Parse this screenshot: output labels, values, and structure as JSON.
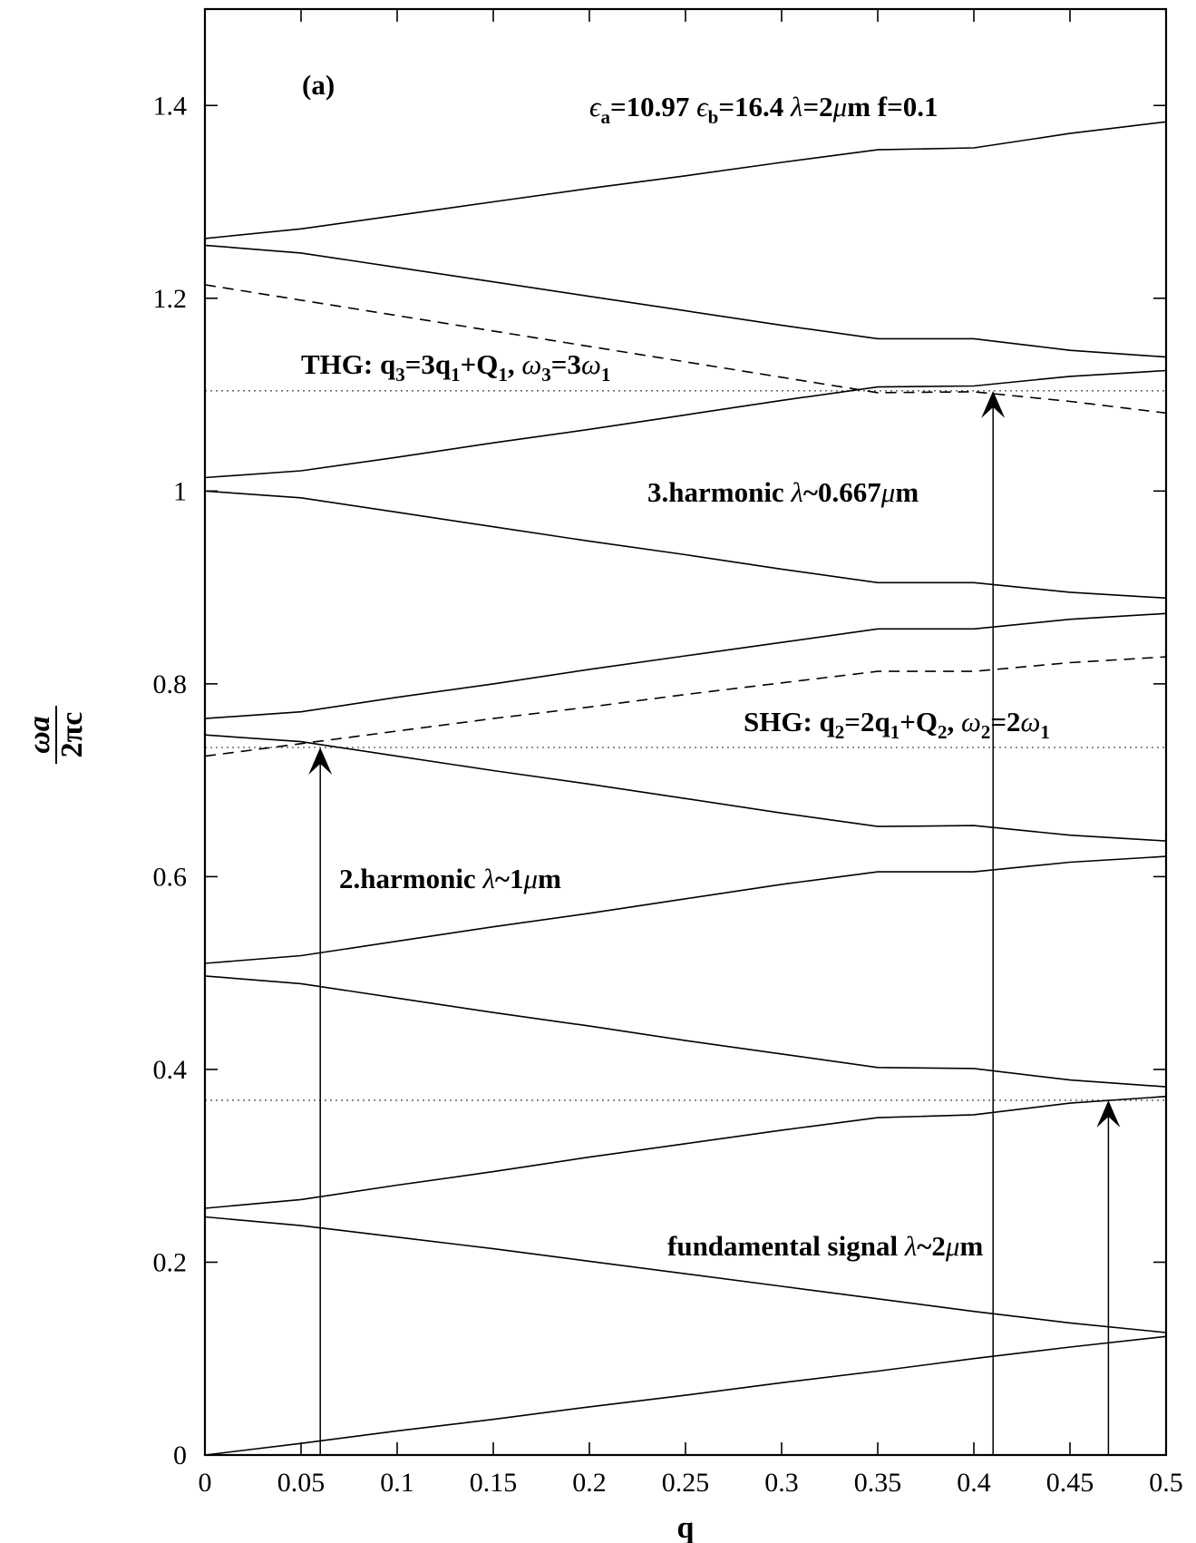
{
  "chart_data": {
    "type": "line",
    "panel_label": "(a)",
    "xlabel": "q",
    "ylabel": {
      "numerator": "ωa",
      "denominator": "2πc"
    },
    "xlim": [
      0,
      0.5
    ],
    "ylim": [
      0,
      1.5
    ],
    "xticks": [
      0,
      0.05,
      0.1,
      0.15,
      0.2,
      0.25,
      0.3,
      0.35,
      0.4,
      0.45,
      0.5
    ],
    "xtick_labels": [
      "0",
      "0.05",
      "0.1",
      "0.15",
      "0.2",
      "0.25",
      "0.3",
      "0.35",
      "0.4",
      "0.45",
      "0.5"
    ],
    "yticks": [
      0,
      0.2,
      0.4,
      0.6,
      0.8,
      1.0,
      1.2,
      1.4
    ],
    "ytick_labels": [
      "0",
      "0.2",
      "0.4",
      "0.6",
      "0.8",
      "1",
      "1.2",
      "1.4"
    ],
    "grid": false,
    "series": [
      {
        "style": "solid",
        "points": [
          [
            0,
            0.0
          ],
          [
            0.05,
            0.012
          ],
          [
            0.1,
            0.025
          ],
          [
            0.15,
            0.037
          ],
          [
            0.2,
            0.05
          ],
          [
            0.25,
            0.062
          ],
          [
            0.3,
            0.075
          ],
          [
            0.35,
            0.087
          ],
          [
            0.4,
            0.1
          ],
          [
            0.45,
            0.112
          ],
          [
            0.5,
            0.123
          ]
        ]
      },
      {
        "style": "solid",
        "points": [
          [
            0,
            0.247
          ],
          [
            0.05,
            0.238
          ],
          [
            0.1,
            0.226
          ],
          [
            0.15,
            0.214
          ],
          [
            0.2,
            0.201
          ],
          [
            0.25,
            0.188
          ],
          [
            0.3,
            0.175
          ],
          [
            0.35,
            0.162
          ],
          [
            0.4,
            0.149
          ],
          [
            0.45,
            0.137
          ],
          [
            0.5,
            0.127
          ]
        ]
      },
      {
        "style": "solid",
        "points": [
          [
            0,
            0.256
          ],
          [
            0.05,
            0.265
          ],
          [
            0.1,
            0.28
          ],
          [
            0.15,
            0.294
          ],
          [
            0.2,
            0.309
          ],
          [
            0.25,
            0.323
          ],
          [
            0.3,
            0.337
          ],
          [
            0.35,
            0.35
          ],
          [
            0.4,
            0.353
          ],
          [
            0.45,
            0.365
          ],
          [
            0.5,
            0.372
          ]
        ]
      },
      {
        "style": "solid",
        "points": [
          [
            0,
            0.497
          ],
          [
            0.05,
            0.489
          ],
          [
            0.1,
            0.474
          ],
          [
            0.15,
            0.459
          ],
          [
            0.2,
            0.445
          ],
          [
            0.25,
            0.43
          ],
          [
            0.3,
            0.416
          ],
          [
            0.35,
            0.402
          ],
          [
            0.4,
            0.401
          ],
          [
            0.45,
            0.389
          ],
          [
            0.5,
            0.382
          ]
        ]
      },
      {
        "style": "solid",
        "points": [
          [
            0,
            0.51
          ],
          [
            0.05,
            0.518
          ],
          [
            0.1,
            0.533
          ],
          [
            0.15,
            0.548
          ],
          [
            0.2,
            0.562
          ],
          [
            0.25,
            0.577
          ],
          [
            0.3,
            0.592
          ],
          [
            0.35,
            0.605
          ],
          [
            0.4,
            0.605
          ],
          [
            0.45,
            0.615
          ],
          [
            0.5,
            0.621
          ]
        ]
      },
      {
        "style": "solid",
        "points": [
          [
            0,
            0.747
          ],
          [
            0.05,
            0.74
          ],
          [
            0.1,
            0.725
          ],
          [
            0.15,
            0.71
          ],
          [
            0.2,
            0.696
          ],
          [
            0.25,
            0.681
          ],
          [
            0.3,
            0.666
          ],
          [
            0.35,
            0.652
          ],
          [
            0.4,
            0.653
          ],
          [
            0.45,
            0.643
          ],
          [
            0.5,
            0.637
          ]
        ]
      },
      {
        "style": "solid",
        "points": [
          [
            0,
            0.764
          ],
          [
            0.05,
            0.771
          ],
          [
            0.1,
            0.786
          ],
          [
            0.15,
            0.8
          ],
          [
            0.2,
            0.815
          ],
          [
            0.25,
            0.829
          ],
          [
            0.3,
            0.843
          ],
          [
            0.35,
            0.857
          ],
          [
            0.4,
            0.857
          ],
          [
            0.45,
            0.867
          ],
          [
            0.5,
            0.873
          ]
        ]
      },
      {
        "style": "solid",
        "points": [
          [
            0,
            1.0
          ],
          [
            0.05,
            0.993
          ],
          [
            0.1,
            0.978
          ],
          [
            0.15,
            0.963
          ],
          [
            0.2,
            0.948
          ],
          [
            0.25,
            0.934
          ],
          [
            0.3,
            0.919
          ],
          [
            0.35,
            0.905
          ],
          [
            0.4,
            0.905
          ],
          [
            0.45,
            0.895
          ],
          [
            0.5,
            0.889
          ]
        ]
      },
      {
        "style": "solid",
        "points": [
          [
            0,
            1.014
          ],
          [
            0.05,
            1.021
          ],
          [
            0.1,
            1.035
          ],
          [
            0.15,
            1.05
          ],
          [
            0.2,
            1.064
          ],
          [
            0.25,
            1.079
          ],
          [
            0.3,
            1.094
          ],
          [
            0.35,
            1.108
          ],
          [
            0.4,
            1.109
          ],
          [
            0.45,
            1.119
          ],
          [
            0.5,
            1.125
          ]
        ]
      },
      {
        "style": "solid",
        "points": [
          [
            0,
            1.255
          ],
          [
            0.05,
            1.247
          ],
          [
            0.1,
            1.232
          ],
          [
            0.15,
            1.217
          ],
          [
            0.2,
            1.202
          ],
          [
            0.25,
            1.187
          ],
          [
            0.3,
            1.172
          ],
          [
            0.35,
            1.158
          ],
          [
            0.4,
            1.158
          ],
          [
            0.45,
            1.146
          ],
          [
            0.5,
            1.139
          ]
        ]
      },
      {
        "style": "solid",
        "points": [
          [
            0,
            1.262
          ],
          [
            0.05,
            1.272
          ],
          [
            0.1,
            1.286
          ],
          [
            0.15,
            1.3
          ],
          [
            0.2,
            1.314
          ],
          [
            0.25,
            1.327
          ],
          [
            0.3,
            1.341
          ],
          [
            0.35,
            1.354
          ],
          [
            0.4,
            1.356
          ],
          [
            0.45,
            1.371
          ],
          [
            0.5,
            1.383
          ]
        ]
      },
      {
        "style": "dashed",
        "points": [
          [
            0,
            0.725
          ],
          [
            0.05,
            0.738
          ],
          [
            0.1,
            0.751
          ],
          [
            0.15,
            0.764
          ],
          [
            0.2,
            0.776
          ],
          [
            0.25,
            0.789
          ],
          [
            0.3,
            0.801
          ],
          [
            0.35,
            0.813
          ],
          [
            0.4,
            0.813
          ],
          [
            0.45,
            0.822
          ],
          [
            0.5,
            0.828
          ]
        ]
      },
      {
        "style": "dashed",
        "points": [
          [
            0,
            1.214
          ],
          [
            0.05,
            1.198
          ],
          [
            0.1,
            1.182
          ],
          [
            0.15,
            1.166
          ],
          [
            0.2,
            1.15
          ],
          [
            0.25,
            1.134
          ],
          [
            0.3,
            1.118
          ],
          [
            0.35,
            1.102
          ],
          [
            0.4,
            1.103
          ],
          [
            0.45,
            1.093
          ],
          [
            0.5,
            1.081
          ]
        ]
      }
    ],
    "hlines": [
      {
        "style": "dotted",
        "y": 0.368
      },
      {
        "style": "dotted",
        "y": 0.734
      },
      {
        "style": "dotted",
        "y": 1.104
      }
    ],
    "arrows": [
      {
        "x": 0.06,
        "y_from": 0,
        "y_to": 0.734
      },
      {
        "x": 0.41,
        "y_from": 0,
        "y_to": 1.104
      },
      {
        "x": 0.47,
        "y_from": 0,
        "y_to": 0.368
      }
    ],
    "annotations": [
      {
        "text": "ϵa=10.97  ϵb=16.4  λ=2μm  f=0.1",
        "x": 0.197,
        "y": 1.38
      },
      {
        "text": "THG:  q3=3q1+Q1,  ω3=3ω1",
        "x": 0.05,
        "y": 1.108
      },
      {
        "text": "3.harmonic  λ~0.667μm",
        "x": 0.23,
        "y": 0.988
      },
      {
        "text": "SHG:  q2=2q1+Q2,  ω2=2ω1",
        "x": 0.281,
        "y": 0.748
      },
      {
        "text": "2.harmonic  λ~1μm",
        "x": 0.07,
        "y": 0.59
      },
      {
        "text": "fundamental  signal  λ~2μm",
        "x": 0.24,
        "y": 0.19
      }
    ]
  }
}
